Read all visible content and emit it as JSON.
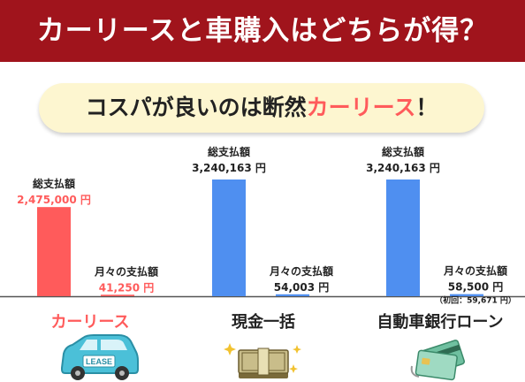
{
  "header": {
    "title": "カーリースと車購入はどちらが得？"
  },
  "callout": {
    "prefix": "コスパが良いのは断然",
    "accent": "カーリース",
    "suffix": "！"
  },
  "colors": {
    "header_bg": "#a0141c",
    "lease": "#ff5b5b",
    "purchase": "#4f8ff0",
    "callout_bg": "#fdf6d0"
  },
  "chart_data": {
    "type": "bar",
    "categories": [
      "カーリース",
      "現金一括",
      "自動車銀行ローン"
    ],
    "series": [
      {
        "name": "総支払額",
        "values": [
          2475000,
          3240163,
          3240163
        ],
        "labels": [
          "2,475,000 円",
          "3,240,163 円",
          "3,240,163 円"
        ]
      },
      {
        "name": "月々の支払額",
        "values": [
          41250,
          54003,
          58500
        ],
        "labels": [
          "41,250 円",
          "54,003 円",
          "58,500 円"
        ]
      }
    ],
    "notes": [
      "",
      "",
      "（初回：59,671 円）"
    ],
    "series_colors": [
      "#ff5b5b",
      "#4f8ff0",
      "#4f8ff0"
    ]
  },
  "plans": [
    {
      "label": "カーリース",
      "illustration": "lease-car-icon",
      "badge": "LEASE"
    },
    {
      "label": "現金一括",
      "illustration": "money-bundle-icon"
    },
    {
      "label": "自動車銀行ローン",
      "illustration": "credit-card-icon"
    }
  ]
}
